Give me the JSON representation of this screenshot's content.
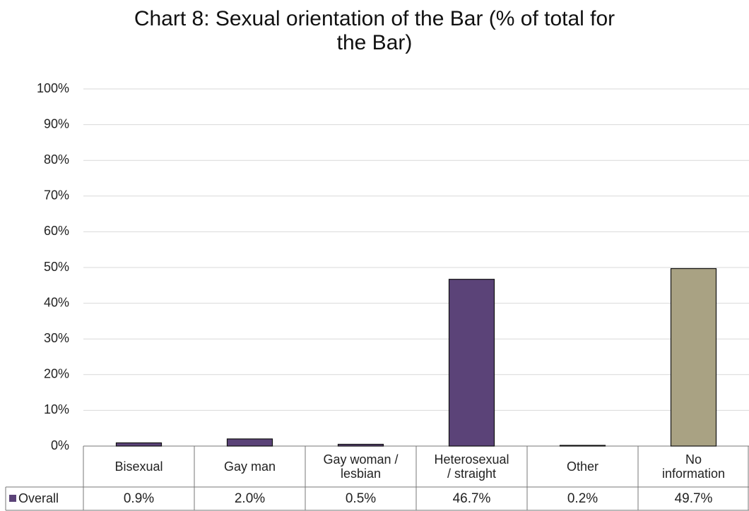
{
  "chart_data": {
    "type": "bar",
    "title": "Chart 8: Sexual orientation of the Bar (% of total for\nthe Bar)",
    "categories": [
      "Bisexual",
      "Gay man",
      "Gay woman /\nlesbian",
      "Heterosexual\n/ straight",
      "Other",
      "No\ninformation"
    ],
    "series": [
      {
        "name": "Overall",
        "color": "#5b4378",
        "colors": [
          "#5b4378",
          "#5b4378",
          "#5b4378",
          "#5b4378",
          "#5b4378",
          "#a9a283"
        ],
        "values": [
          0.9,
          2.0,
          0.5,
          46.7,
          0.2,
          49.7
        ],
        "value_labels": [
          "0.9%",
          "2.0%",
          "0.5%",
          "46.7%",
          "0.2%",
          "49.7%"
        ]
      }
    ],
    "ylim": [
      0,
      100
    ],
    "yticks": [
      {
        "value": 0,
        "label": "0%"
      },
      {
        "value": 10,
        "label": "10%"
      },
      {
        "value": 20,
        "label": "20%"
      },
      {
        "value": 30,
        "label": "30%"
      },
      {
        "value": 40,
        "label": "40%"
      },
      {
        "value": 50,
        "label": "50%"
      },
      {
        "value": 60,
        "label": "60%"
      },
      {
        "value": 70,
        "label": "70%"
      },
      {
        "value": 80,
        "label": "80%"
      },
      {
        "value": 90,
        "label": "90%"
      },
      {
        "value": 100,
        "label": "100%"
      }
    ],
    "grid": true
  }
}
